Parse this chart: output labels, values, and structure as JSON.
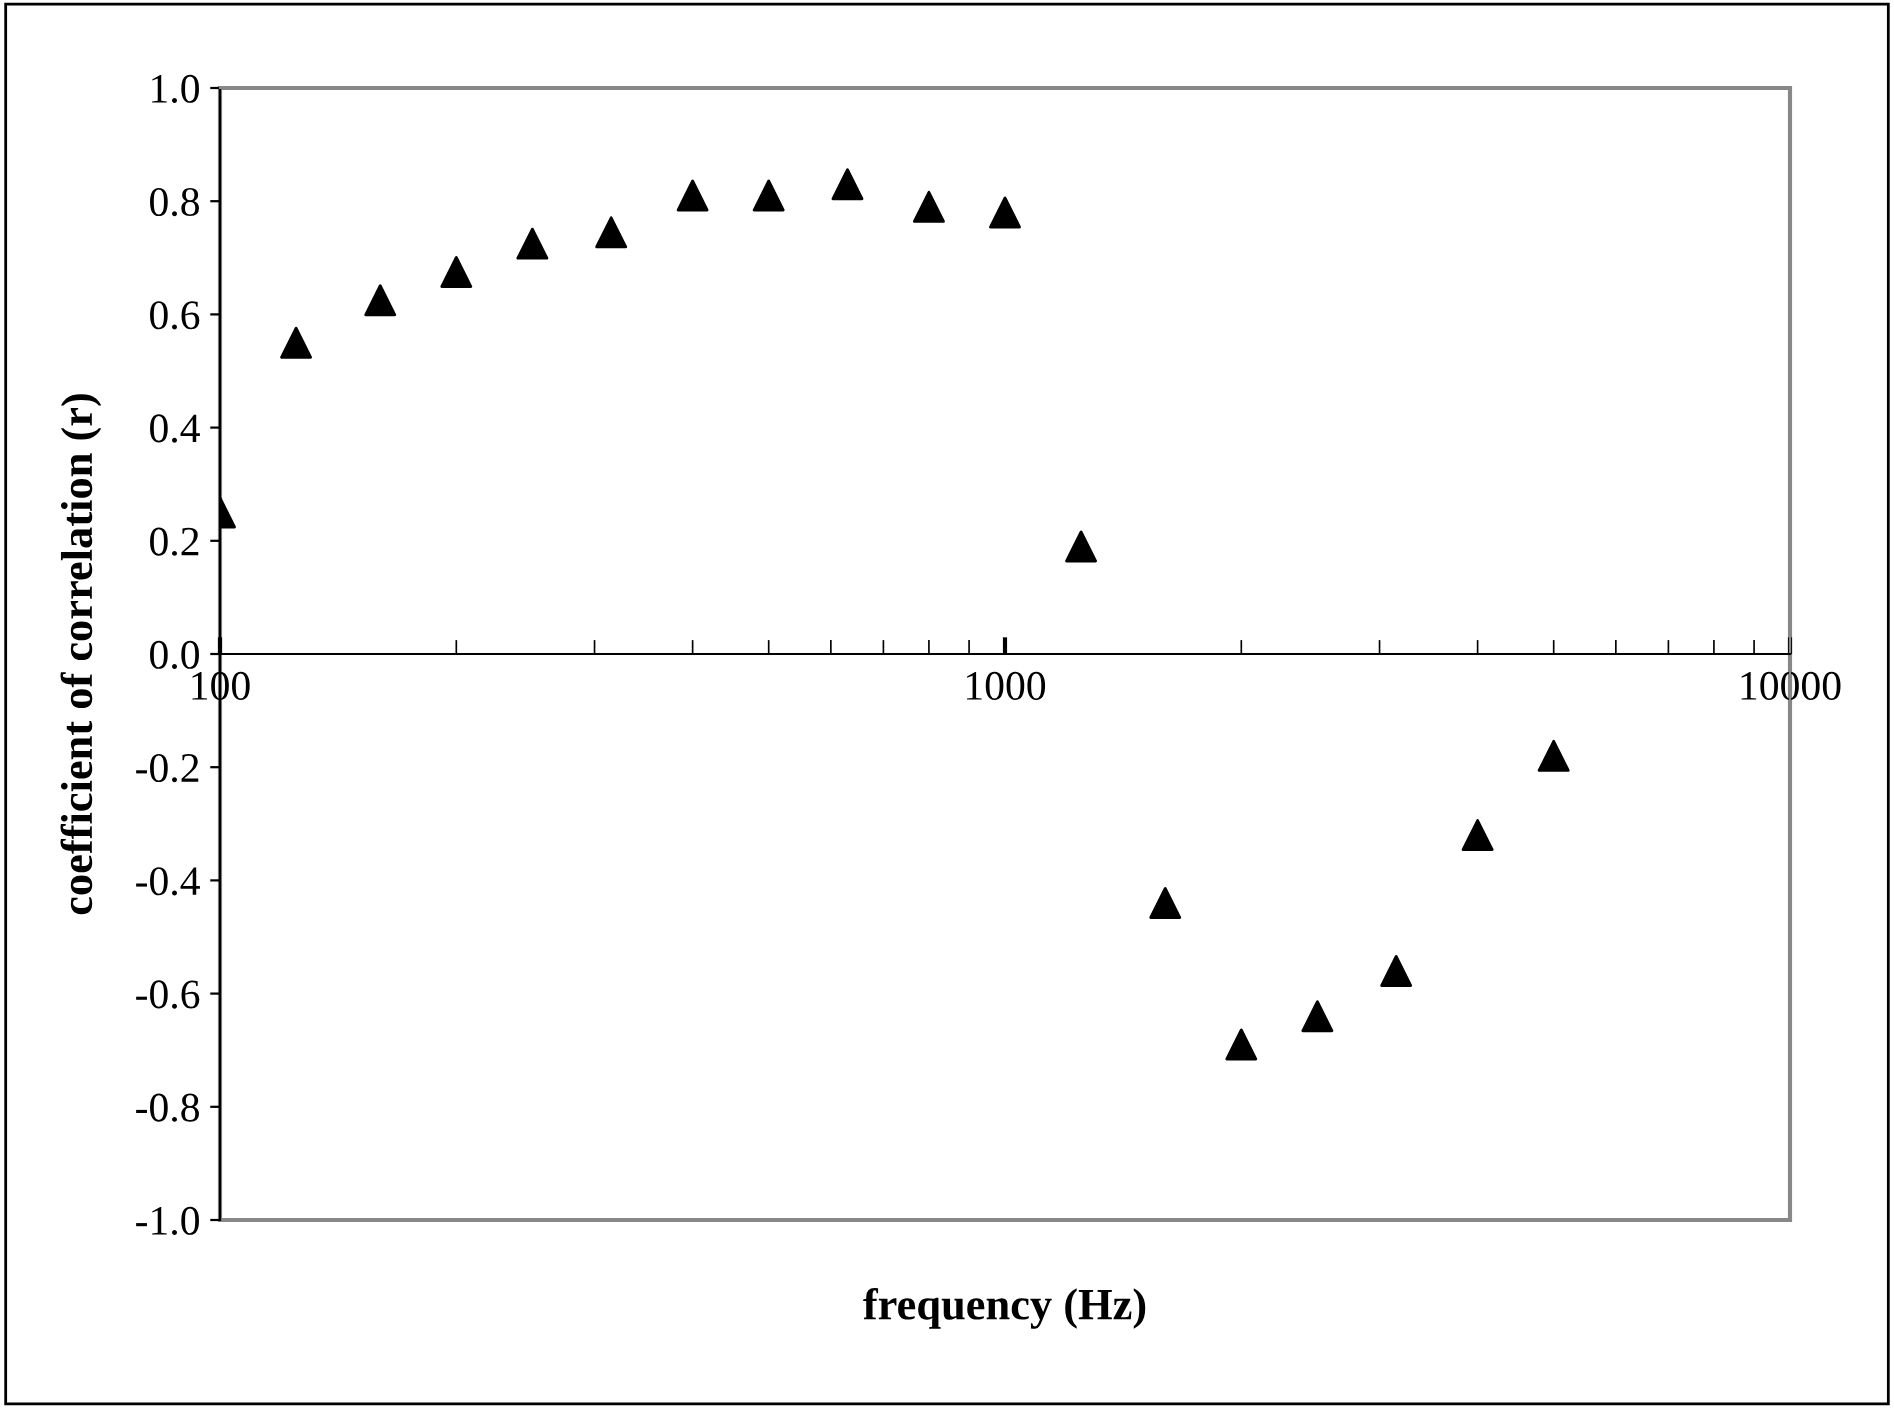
{
  "chart_data": {
    "type": "scatter",
    "xlabel": "frequency (Hz)",
    "ylabel": "coefficient of correlation (r)",
    "x": [
      100,
      125,
      160,
      200,
      250,
      315,
      400,
      500,
      630,
      800,
      1000,
      1250,
      1600,
      2000,
      2500,
      3150,
      4000,
      5000
    ],
    "series": [
      {
        "color": "#000000",
        "values": [
          0.25,
          0.55,
          0.625,
          0.675,
          0.725,
          0.745,
          0.81,
          0.81,
          0.83,
          0.79,
          0.78,
          0.19,
          -0.44,
          -0.69,
          -0.64,
          -0.56,
          -0.32,
          -0.18
        ]
      }
    ],
    "log": "x",
    "xlim": [
      100,
      10000
    ],
    "xticks": [
      100,
      1000,
      10000
    ],
    "ylim": [
      -1.0,
      1.0
    ],
    "yticks": [
      {
        "value": -1.0,
        "label": "-1.0"
      },
      {
        "value": -0.8,
        "label": "-0.8"
      },
      {
        "value": -0.6,
        "label": "-0.6"
      },
      {
        "value": -0.4,
        "label": "-0.4"
      },
      {
        "value": -0.2,
        "label": "-0.2"
      },
      {
        "value": 0.0,
        "label": "0.0"
      },
      {
        "value": 0.2,
        "label": "0.2"
      },
      {
        "value": 0.4,
        "label": "0.4"
      },
      {
        "value": 0.6,
        "label": "0.6"
      },
      {
        "value": 0.8,
        "label": "0.8"
      },
      {
        "value": 1.0,
        "label": "1.0"
      }
    ],
    "marker": "triangle",
    "grid": false,
    "legend": false
  }
}
